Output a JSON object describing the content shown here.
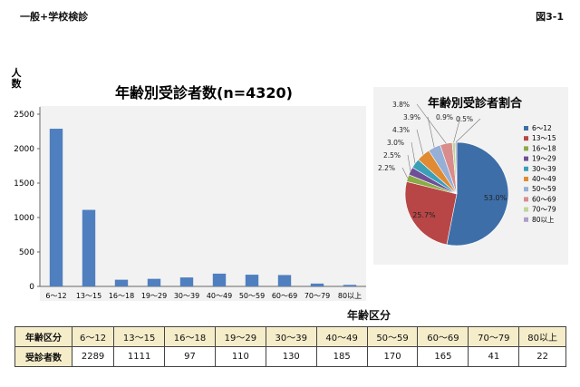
{
  "header": {
    "left": "一般+学校検診",
    "right": "図3-1"
  },
  "chart_data": [
    {
      "type": "bar",
      "title": "年齢別受診者数(n=4320)",
      "ylabel": "人\n数",
      "xlabel": "年齢区分",
      "categories": [
        "6～12",
        "13～15",
        "16～18",
        "19～29",
        "30～39",
        "40～49",
        "50～59",
        "60～69",
        "70～79",
        "80以上"
      ],
      "values": [
        2289,
        1111,
        97,
        110,
        130,
        185,
        170,
        165,
        41,
        22
      ],
      "ylim": [
        0,
        2500
      ],
      "yticks": [
        0,
        500,
        1000,
        1500,
        2000,
        2500
      ],
      "grid": false,
      "color": "#4f7fbf"
    },
    {
      "type": "pie",
      "title": "年齢別受診者割合",
      "legend_position": "right",
      "slices": [
        {
          "label": "6～12",
          "value": 53.0,
          "text": "53.0%",
          "color": "#3d6ea8"
        },
        {
          "label": "13～15",
          "value": 25.7,
          "text": "25.7%",
          "color": "#b84646"
        },
        {
          "label": "16～18",
          "value": 2.2,
          "text": "2.2%",
          "color": "#8bab47"
        },
        {
          "label": "19～29",
          "value": 2.5,
          "text": "2.5%",
          "color": "#6f4f98"
        },
        {
          "label": "30～39",
          "value": 3.0,
          "text": "3.0%",
          "color": "#3aa0b8"
        },
        {
          "label": "40～49",
          "value": 4.3,
          "text": "4.3%",
          "color": "#e08a33"
        },
        {
          "label": "50～59",
          "value": 3.9,
          "text": "3.9%",
          "color": "#95afd6"
        },
        {
          "label": "60～69",
          "value": 3.8,
          "text": "3.8%",
          "color": "#d98c8c"
        },
        {
          "label": "70～79",
          "value": 0.9,
          "text": "0.9%",
          "color": "#bfd699"
        },
        {
          "label": "80以上",
          "value": 0.5,
          "text": "0.5%",
          "color": "#b09cc8"
        }
      ]
    }
  ],
  "table": {
    "header_label": "年齢区分",
    "row_label": "受診者数",
    "categories": [
      "6～12",
      "13～15",
      "16～18",
      "19～29",
      "30～39",
      "40～49",
      "50～59",
      "60～69",
      "70～79",
      "80以上"
    ],
    "values": [
      "2289",
      "1111",
      "97",
      "110",
      "130",
      "185",
      "170",
      "165",
      "41",
      "22"
    ]
  }
}
